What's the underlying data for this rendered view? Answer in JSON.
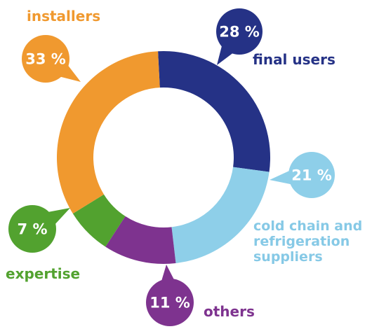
{
  "chart_data": {
    "type": "pie",
    "title": "",
    "categories": [
      "final users",
      "cold chain and refrigeration suppliers",
      "others",
      "expertise",
      "installers"
    ],
    "values": [
      28,
      21,
      11,
      7,
      33
    ],
    "value_labels": [
      "28 %",
      "21 %",
      "11 %",
      "7 %",
      "33 %"
    ],
    "colors": [
      "#253286",
      "#8ecfe9",
      "#7e338f",
      "#52a22f",
      "#f0992f"
    ],
    "legend": "none"
  }
}
